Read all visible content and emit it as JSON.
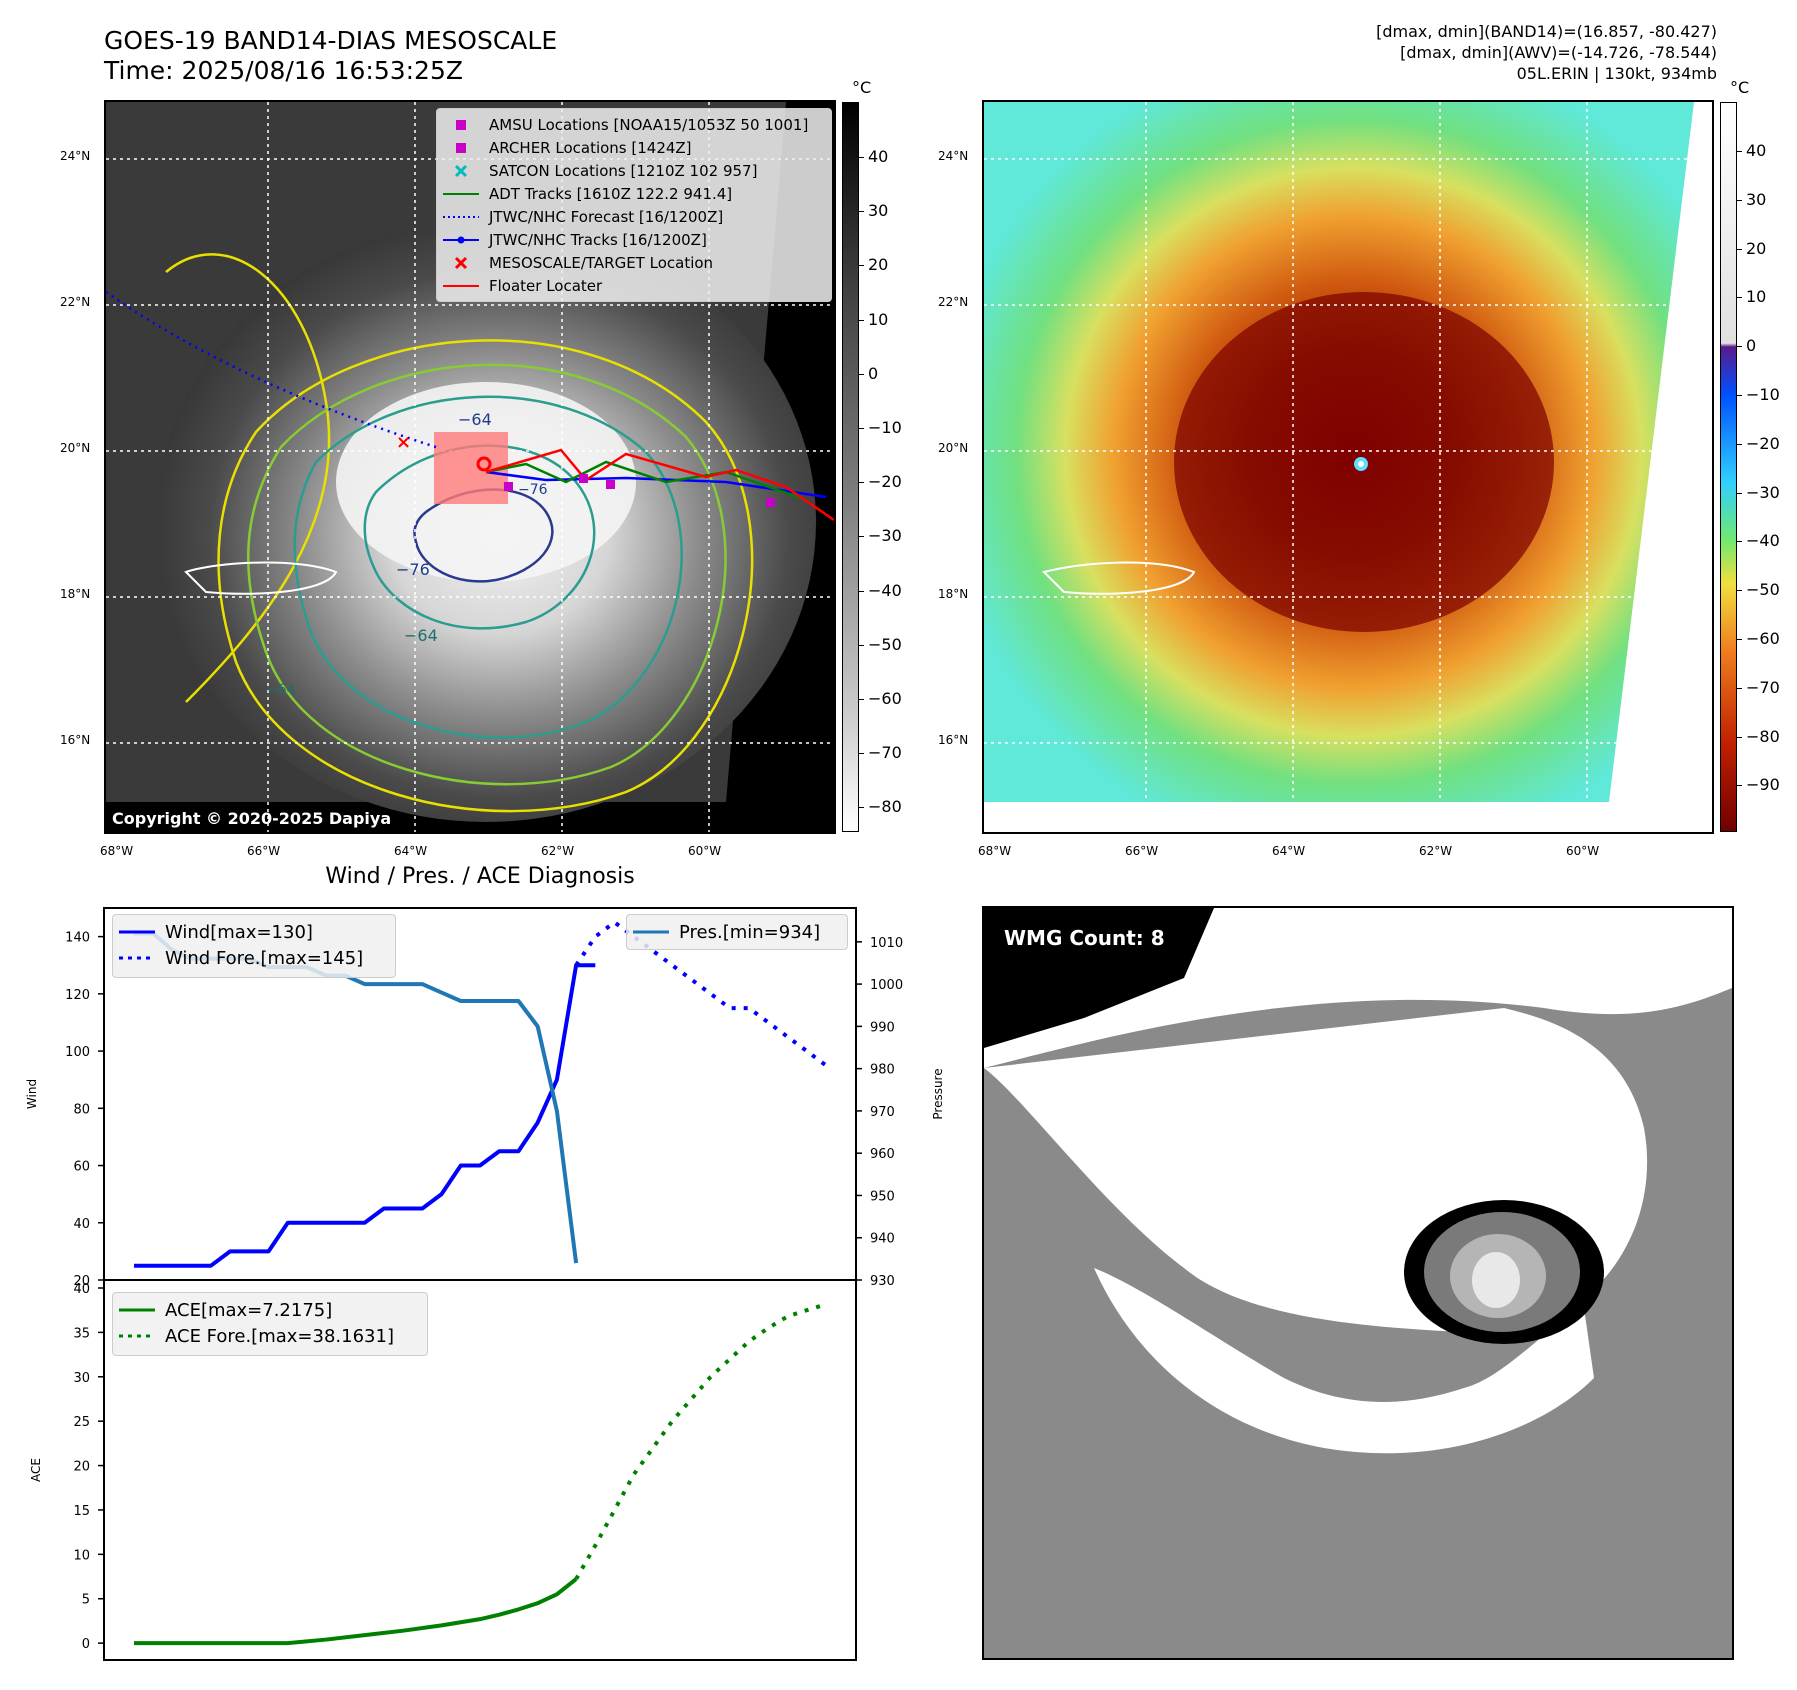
{
  "header": {
    "title_line1": "GOES-19 BAND14-DIAS MESOSCALE",
    "title_line2": "Time: 2025/08/16 16:53:25Z",
    "info_line1": "[dmax, dmin](BAND14)=(16.857, -80.427)",
    "info_line2": "[dmax, dmin](AWV)=(-14.726, -78.544)",
    "info_line3": "05L.ERIN | 130kt, 934mb"
  },
  "map": {
    "lon_ticks": [
      "68°W",
      "66°W",
      "64°W",
      "62°W",
      "60°W"
    ],
    "lat_ticks": [
      "24°N",
      "22°N",
      "20°N",
      "18°N",
      "16°N"
    ],
    "contour_labels": [
      "−64",
      "−76",
      "−64",
      "−76",
      "−64"
    ],
    "copyright": "Copyright © 2020-2025 Dapiya"
  },
  "colorbar_left": {
    "unit": "°C",
    "ticks": [
      "40",
      "30",
      "20",
      "10",
      "0",
      "−10",
      "−20",
      "−30",
      "−40",
      "−50",
      "−60",
      "−70",
      "−80"
    ]
  },
  "colorbar_right": {
    "unit": "°C",
    "ticks": [
      "40",
      "30",
      "20",
      "10",
      "0",
      "−10",
      "−20",
      "−30",
      "−40",
      "−50",
      "−60",
      "−70",
      "−80",
      "−90"
    ]
  },
  "legend": {
    "items": [
      {
        "label": "AMSU Locations [NOAA15/1053Z 50 1001]",
        "color": "#c800c8",
        "kind": "square"
      },
      {
        "label": "ARCHER Locations [1424Z]",
        "color": "#c800c8",
        "kind": "square"
      },
      {
        "label": "SATCON Locations [1210Z 102 957]",
        "color": "#00bcbc",
        "kind": "x"
      },
      {
        "label": "ADT Tracks [1610Z 122.2 941.4]",
        "color": "#008000",
        "kind": "line"
      },
      {
        "label": "JTWC/NHC Forecast [16/1200Z]",
        "color": "#0000ff",
        "kind": "dotted"
      },
      {
        "label": "JTWC/NHC Tracks [16/1200Z]",
        "color": "#0000ff",
        "kind": "linedot"
      },
      {
        "label": "MESOSCALE/TARGET Location",
        "color": "#ff0000",
        "kind": "x"
      },
      {
        "label": "Floater Locater",
        "color": "#ff0000",
        "kind": "line"
      }
    ]
  },
  "wmg": {
    "count_label": "WMG Count: 8"
  },
  "chart_data": [
    {
      "type": "line",
      "title": "Wind / Pres. / ACE Diagnosis",
      "ylabel": "Wind",
      "ylim": [
        20,
        150
      ],
      "y_ticks": [
        20,
        40,
        60,
        80,
        100,
        120,
        140
      ],
      "series": [
        {
          "name": "Wind[max=130]",
          "color": "#0000ff",
          "style": "solid",
          "x": [
            0,
            1,
            2,
            3,
            4,
            5,
            6,
            7,
            8,
            9,
            10,
            11,
            12,
            13,
            14,
            15,
            16,
            17,
            18,
            19,
            20,
            21,
            22,
            23,
            24
          ],
          "values": [
            25,
            25,
            25,
            25,
            25,
            30,
            30,
            30,
            40,
            40,
            40,
            40,
            40,
            45,
            45,
            45,
            50,
            60,
            60,
            65,
            65,
            75,
            90,
            130,
            130
          ]
        },
        {
          "name": "Wind Fore.[max=145]",
          "color": "#0000ff",
          "style": "dotted",
          "x": [
            23,
            24,
            25,
            26,
            27,
            28,
            29,
            30,
            31,
            32,
            33,
            34,
            35,
            36
          ],
          "values": [
            130,
            140,
            145,
            140,
            135,
            130,
            125,
            120,
            115,
            115,
            110,
            105,
            100,
            95
          ]
        }
      ]
    },
    {
      "type": "line",
      "ylabel": "Pressure",
      "ylim": [
        930,
        1010
      ],
      "y_ticks": [
        930,
        940,
        950,
        960,
        970,
        980,
        990,
        1000,
        1010
      ],
      "series": [
        {
          "name": "Pres.[min=934]",
          "color": "#1f77b4",
          "style": "solid",
          "x": [
            0,
            1,
            2,
            3,
            4,
            5,
            6,
            7,
            8,
            9,
            10,
            11,
            12,
            13,
            14,
            15,
            16,
            17,
            18,
            19,
            20,
            21,
            22,
            23
          ],
          "values": [
            1012,
            1012,
            1008,
            1006,
            1006,
            1006,
            1006,
            1004,
            1004,
            1004,
            1002,
            1002,
            1000,
            1000,
            1000,
            1000,
            998,
            996,
            996,
            996,
            996,
            990,
            970,
            934
          ]
        }
      ]
    },
    {
      "type": "line",
      "ylabel": "ACE",
      "ylim": [
        -1,
        40
      ],
      "y_ticks": [
        0,
        5,
        10,
        15,
        20,
        25,
        30,
        35,
        40
      ],
      "series": [
        {
          "name": "ACE[max=7.2175]",
          "color": "#008000",
          "style": "solid",
          "x": [
            0,
            2,
            4,
            6,
            8,
            10,
            12,
            14,
            16,
            18,
            19,
            20,
            21,
            22,
            23
          ],
          "values": [
            0,
            0,
            0,
            0,
            0,
            0.4,
            0.9,
            1.4,
            2.0,
            2.7,
            3.2,
            3.8,
            4.5,
            5.5,
            7.2175
          ]
        },
        {
          "name": "ACE Fore.[max=38.1631]",
          "color": "#008000",
          "style": "dotted",
          "x": [
            23,
            24,
            25,
            26,
            27,
            28,
            29,
            30,
            31,
            32,
            33,
            34,
            35,
            36
          ],
          "values": [
            7.2175,
            11,
            15,
            19,
            22,
            25,
            27.5,
            30,
            32,
            34,
            35.5,
            36.8,
            37.5,
            38.1631
          ]
        }
      ]
    }
  ]
}
